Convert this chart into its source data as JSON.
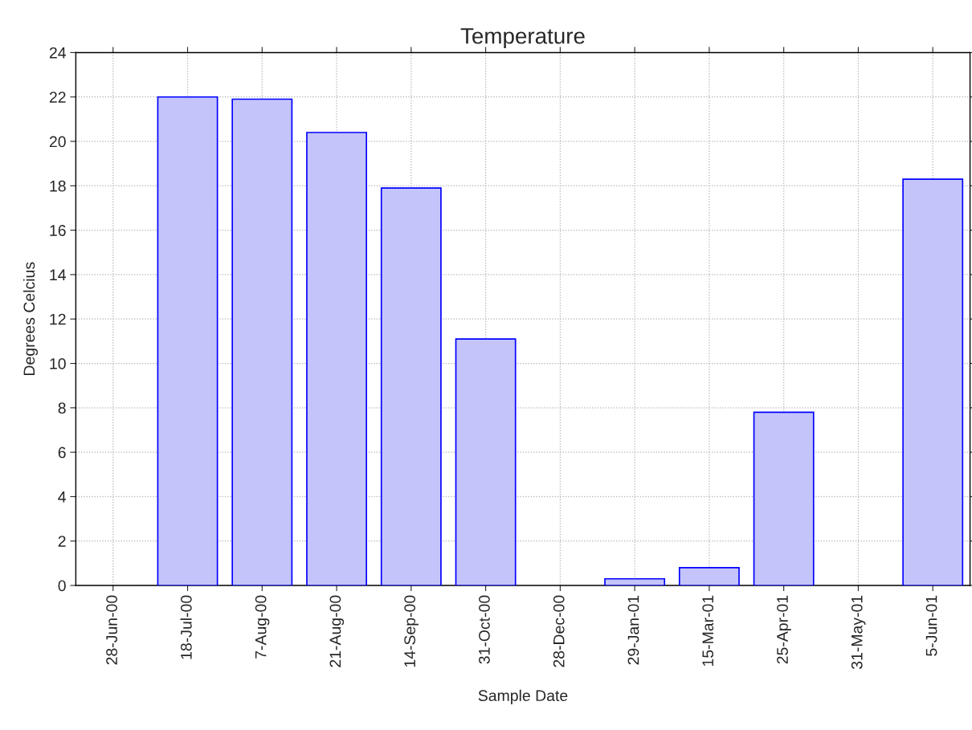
{
  "chart_data": {
    "type": "bar",
    "title": "Temperature",
    "xlabel": "Sample Date",
    "ylabel": "Degrees Celcius",
    "categories": [
      "28-Jun-00",
      "18-Jul-00",
      "7-Aug-00",
      "21-Aug-00",
      "14-Sep-00",
      "31-Oct-00",
      "28-Dec-00",
      "29-Jan-01",
      "15-Mar-01",
      "25-Apr-01",
      "31-May-01",
      "5-Jun-01"
    ],
    "values": [
      null,
      22.0,
      21.9,
      20.4,
      17.9,
      11.1,
      null,
      0.3,
      0.8,
      7.8,
      null,
      18.3
    ],
    "color": "#c4c4fa",
    "ylim": [
      0,
      24
    ],
    "yticks": [
      0,
      2,
      4,
      6,
      8,
      10,
      12,
      14,
      16,
      18,
      20,
      22,
      24
    ],
    "grid": true
  }
}
